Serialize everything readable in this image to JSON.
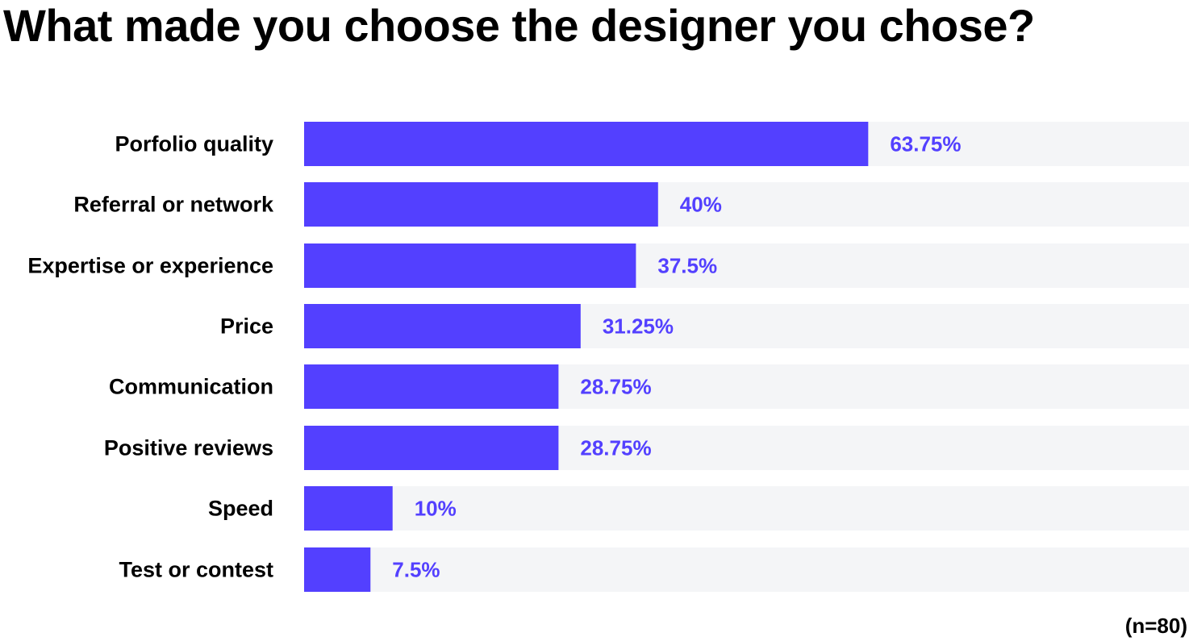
{
  "chart_data": {
    "type": "bar",
    "orientation": "horizontal",
    "title": "What made you choose the designer you chose?",
    "categories": [
      "Porfolio quality",
      "Referral or network",
      "Expertise or experience",
      "Price",
      "Communication",
      "Positive reviews",
      "Speed",
      "Test or contest"
    ],
    "values": [
      63.75,
      40,
      37.5,
      31.25,
      28.75,
      28.75,
      10,
      7.5
    ],
    "value_labels": [
      "63.75%",
      "40%",
      "37.5%",
      "31.25%",
      "28.75%",
      "28.75%",
      "10%",
      "7.5%"
    ],
    "xlim": [
      0,
      100
    ],
    "unit": "%",
    "grid": false,
    "legend": "none",
    "note": "(n=80)",
    "colors": {
      "bar": "#5340FF",
      "track": "#F4F5F7",
      "value_text": "#5340FF",
      "label_text": "#000000"
    }
  }
}
